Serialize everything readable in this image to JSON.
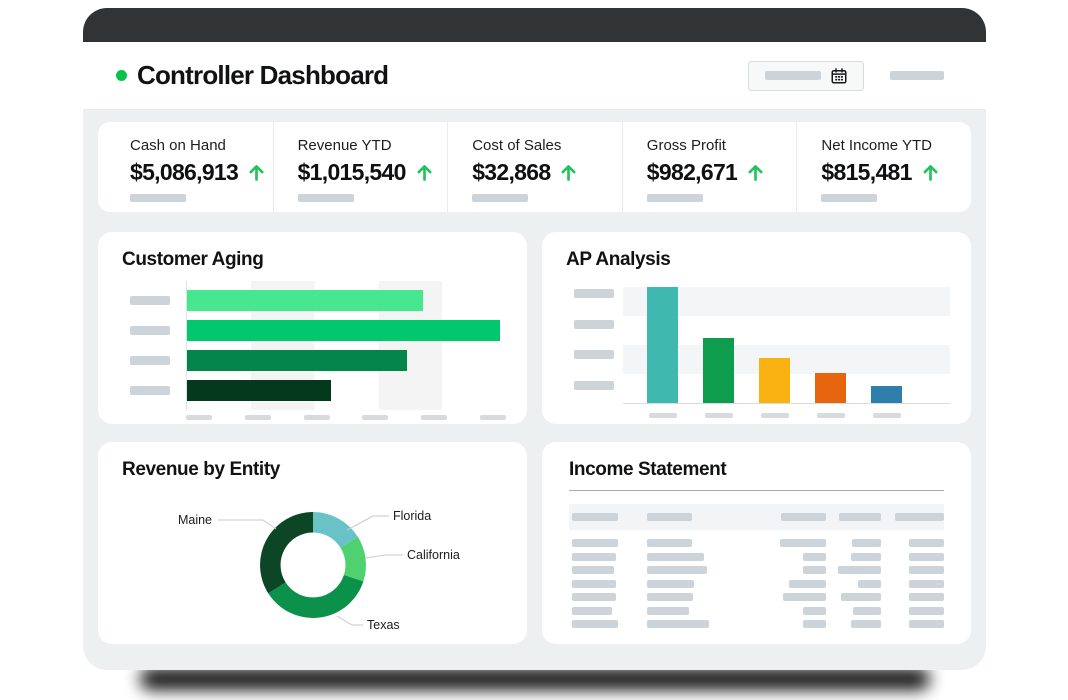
{
  "header": {
    "title": "Controller Dashboard",
    "dot_color": "#0ac24b",
    "accent_green": "#21c15b",
    "datepicker": {
      "placeholder": true,
      "icon": "calendar-icon"
    },
    "right_control_placeholder": true
  },
  "kpis": {
    "arrow_icon": "trend-up-arrow-icon",
    "items": [
      {
        "label": "Cash on Hand",
        "value": "$5,086,913",
        "trend": "up"
      },
      {
        "label": "Revenue YTD",
        "value": "$1,015,540",
        "trend": "up"
      },
      {
        "label": "Cost of Sales",
        "value": "$32,868",
        "trend": "up"
      },
      {
        "label": "Gross Profit",
        "value": "$982,671",
        "trend": "up"
      },
      {
        "label": "Net Income YTD",
        "value": "$815,481",
        "trend": "up"
      }
    ]
  },
  "chart_data": [
    {
      "id": "customer_aging",
      "type": "bar",
      "orientation": "horizontal",
      "title": "Customer Aging",
      "category_placeholders": 4,
      "values_pct_of_max": [
        74,
        98,
        69,
        45
      ],
      "bar_colors": [
        "#47e78f",
        "#02c76d",
        "#048549",
        "#05391e"
      ],
      "x_tick_placeholders": 6,
      "grid": "alternating vertical bands",
      "tick_labels": "redacted placeholder bars"
    },
    {
      "id": "ap_analysis",
      "type": "bar",
      "orientation": "vertical",
      "title": "AP Analysis",
      "category_placeholders": 5,
      "values_pct_of_max": [
        100,
        56,
        39,
        26,
        15
      ],
      "bar_colors": [
        "#3fb8b0",
        "#0e9d4c",
        "#f9b211",
        "#e8650f",
        "#2e7fab"
      ],
      "y_tick_placeholders": 4,
      "grid": "alternating horizontal bands",
      "tick_labels": "redacted placeholder bars"
    },
    {
      "id": "revenue_by_entity",
      "type": "pie",
      "title": "Revenue by Entity",
      "donut": true,
      "slices": [
        {
          "label": "Florida",
          "pct": 16,
          "color": "#68c2c6"
        },
        {
          "label": "California",
          "pct": 14,
          "color": "#50d170"
        },
        {
          "label": "Texas",
          "pct": 36,
          "color": "#0b9149"
        },
        {
          "label": "Maine",
          "pct": 34,
          "color": "#0d4626"
        }
      ],
      "legend_position": "callout labels with leader lines"
    },
    {
      "id": "income_statement",
      "type": "table",
      "title": "Income Statement",
      "columns": 5,
      "cell_contents": "redacted placeholder bars",
      "header_bar_widths": [
        46,
        45,
        45,
        42,
        49
      ],
      "row_bar_widths": [
        [
          46,
          45,
          46,
          29,
          35
        ],
        [
          44,
          57,
          23,
          30,
          35
        ],
        [
          42,
          60,
          23,
          43,
          35
        ],
        [
          44,
          47,
          37,
          23,
          35
        ],
        [
          44,
          46,
          43,
          40,
          35
        ],
        [
          40,
          42,
          23,
          28,
          35
        ],
        [
          46,
          62,
          23,
          30,
          35
        ]
      ]
    }
  ]
}
